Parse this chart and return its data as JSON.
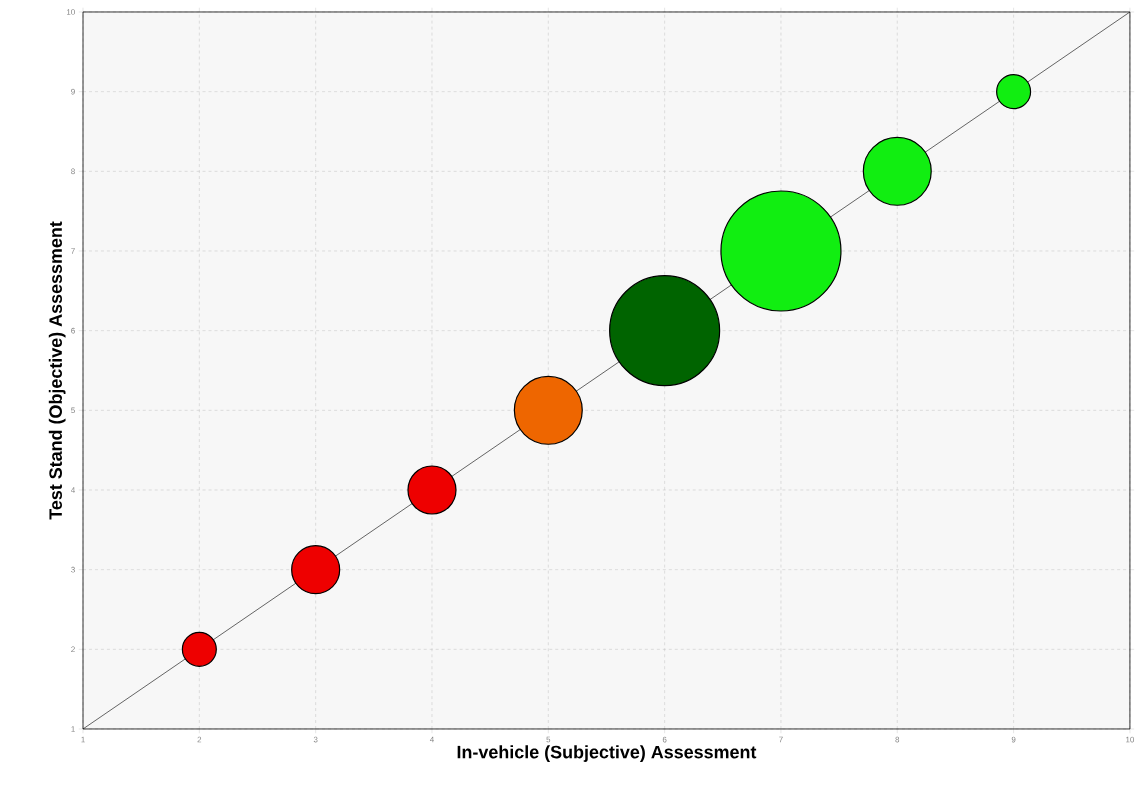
{
  "chart_data": {
    "type": "bubble",
    "xlabel": "In-vehicle (Subjective) Assessment",
    "ylabel": "Test Stand (Objective) Assessment",
    "xlim": [
      1,
      10
    ],
    "ylim": [
      1,
      10
    ],
    "xticks": [
      1,
      2,
      3,
      4,
      5,
      6,
      7,
      8,
      9,
      10
    ],
    "yticks": [
      1,
      2,
      3,
      4,
      5,
      6,
      7,
      8,
      9,
      10
    ],
    "grid": true,
    "series": [
      {
        "x": [
          2,
          3,
          4,
          5,
          6,
          7,
          8,
          9
        ],
        "values": [
          2,
          3,
          4,
          5,
          6,
          7,
          8,
          9
        ],
        "sizes": [
          0.08,
          0.16,
          0.16,
          0.32,
          0.84,
          1,
          0.32,
          0.08
        ],
        "colors": [
          "#ee0000",
          "#ee0000",
          "#ee0000",
          "#ee6600",
          "#006400",
          "#11ee11",
          "#11ee11",
          "#11ee11"
        ]
      },
      {
        "type": "line",
        "x": [
          1,
          10
        ],
        "values": [
          1,
          10
        ],
        "color": "#000000"
      }
    ]
  }
}
